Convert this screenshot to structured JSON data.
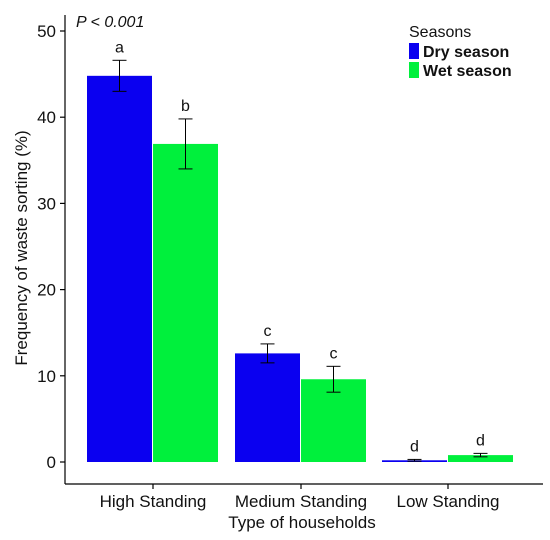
{
  "chart_data": {
    "type": "bar",
    "annotation": "P < 0.001",
    "xlabel": "Type of households",
    "ylabel": "Frequency of waste sorting  (%)",
    "ylim": [
      0,
      50
    ],
    "yticks": [
      0,
      10,
      20,
      30,
      40,
      50
    ],
    "grid": false,
    "categories": [
      "High Standing",
      "Medium Standing",
      "Low Standing"
    ],
    "legend": {
      "title": "Seasons",
      "placement": "top-right"
    },
    "series": [
      {
        "name": "Dry season",
        "color": "#0a00f0",
        "values": [
          44.8,
          12.6,
          0.2
        ],
        "error": [
          1.8,
          1.1,
          0.1
        ],
        "letters": [
          "a",
          "c",
          "d"
        ]
      },
      {
        "name": "Wet season",
        "color": "#00f03c",
        "values": [
          36.9,
          9.6,
          0.8
        ],
        "error": [
          2.9,
          1.5,
          0.2
        ],
        "letters": [
          "b",
          "c",
          "d"
        ]
      }
    ]
  }
}
